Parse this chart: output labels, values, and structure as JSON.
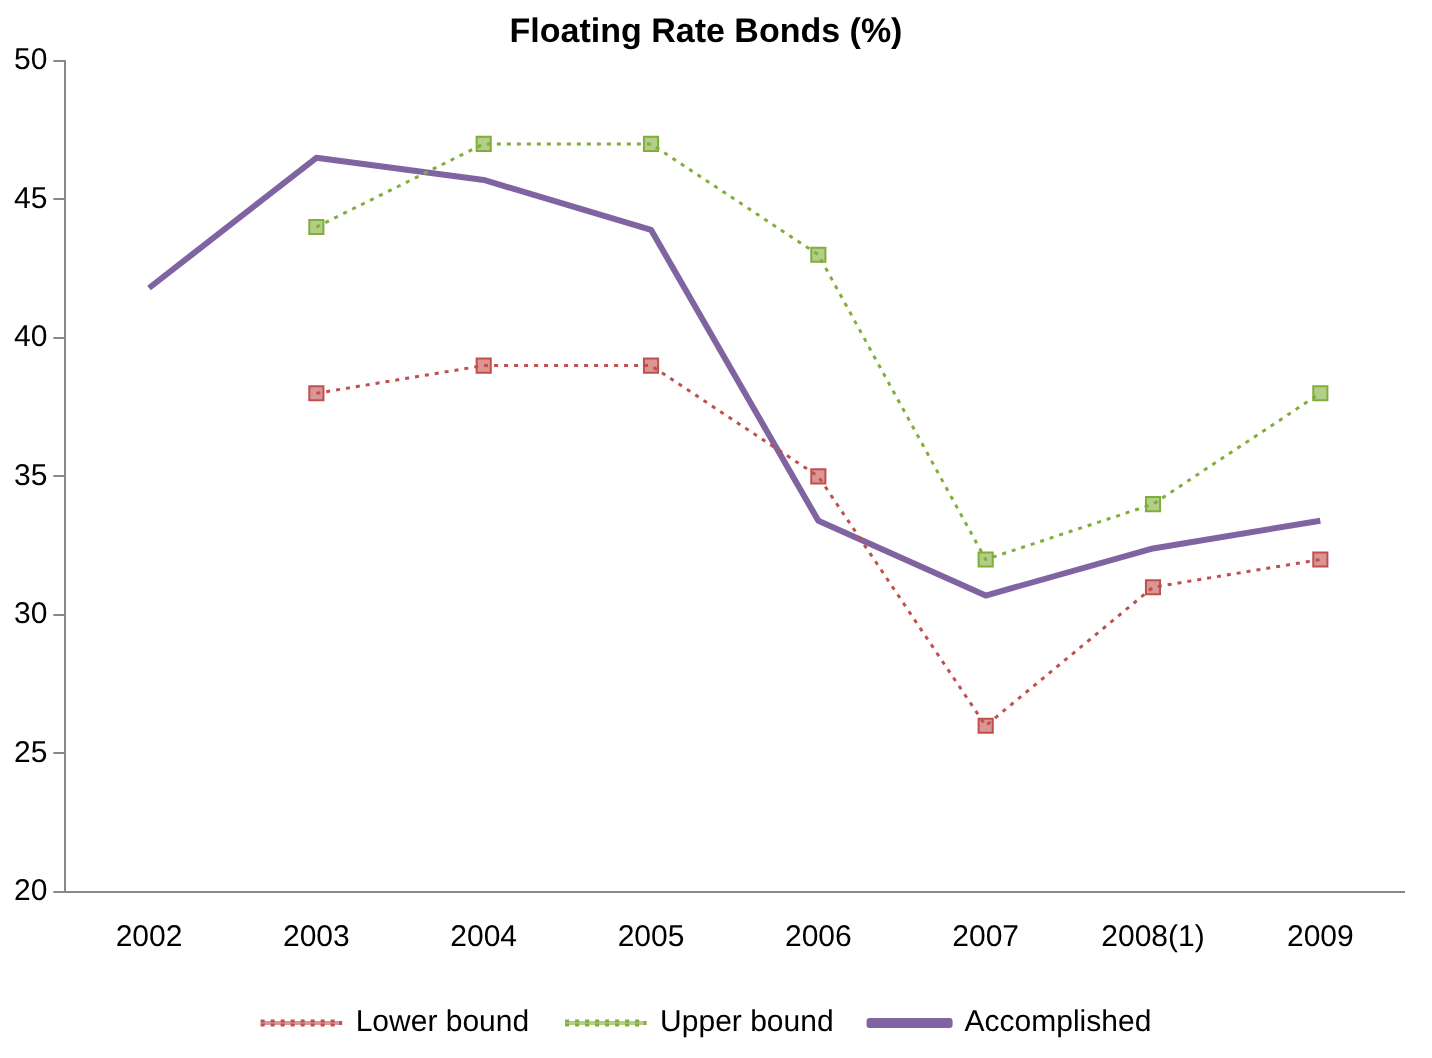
{
  "chart_data": {
    "type": "line",
    "title": "Floating Rate Bonds (%)",
    "categories": [
      "2002",
      "2003",
      "2004",
      "2005",
      "2006",
      "2007",
      "2008(1)",
      "2009"
    ],
    "series": [
      {
        "name": "Lower bound",
        "color": "#c0504d",
        "marker": "square",
        "line_style": "dotted",
        "values": [
          null,
          38,
          39,
          39,
          35,
          26,
          31,
          32
        ]
      },
      {
        "name": "Upper bound",
        "color": "#7fae3a",
        "marker": "square",
        "line_style": "dotted",
        "values": [
          null,
          44,
          47,
          47,
          43,
          32,
          34,
          38
        ]
      },
      {
        "name": "Accomplished",
        "color": "#8064a2",
        "marker": "none",
        "line_style": "solid",
        "values": [
          41.8,
          46.5,
          45.7,
          43.9,
          33.4,
          30.7,
          32.4,
          33.4
        ]
      }
    ],
    "ylim": [
      20,
      50
    ],
    "yticks": [
      20,
      25,
      30,
      35,
      40,
      45,
      50
    ],
    "grid": false,
    "legend": "bottom"
  }
}
